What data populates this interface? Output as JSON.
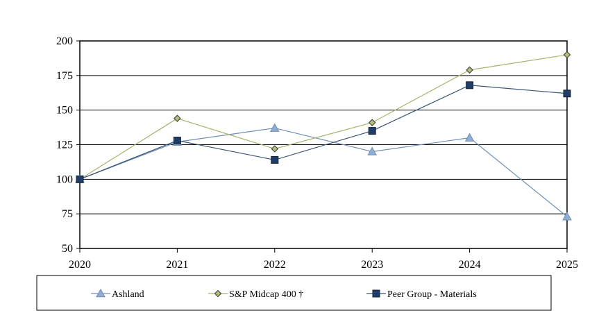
{
  "chart_data": {
    "type": "line",
    "title": "",
    "xlabel": "",
    "ylabel": "",
    "x": [
      "2020",
      "2021",
      "2022",
      "2023",
      "2024",
      "2025"
    ],
    "ylim": [
      50,
      200
    ],
    "yticks": [
      50,
      75,
      100,
      125,
      150,
      175,
      200
    ],
    "grid": "horizontal",
    "legend_position": "bottom",
    "series": [
      {
        "name": "Ashland",
        "marker": "triangle",
        "color": "#6f8fb5",
        "marker_fill": "#8eaed6",
        "values": [
          100,
          127,
          137,
          120,
          130,
          73
        ]
      },
      {
        "name": "S&P Midcap 400 †",
        "marker": "diamond",
        "color": "#a6b36a",
        "marker_fill": "#b5c078",
        "values": [
          100,
          144,
          122,
          141,
          179,
          190
        ]
      },
      {
        "name": "Peer Group - Materials",
        "marker": "square",
        "color": "#3b5577",
        "marker_fill": "#1f3d66",
        "values": [
          100,
          128,
          114,
          135,
          168,
          162
        ]
      }
    ]
  }
}
